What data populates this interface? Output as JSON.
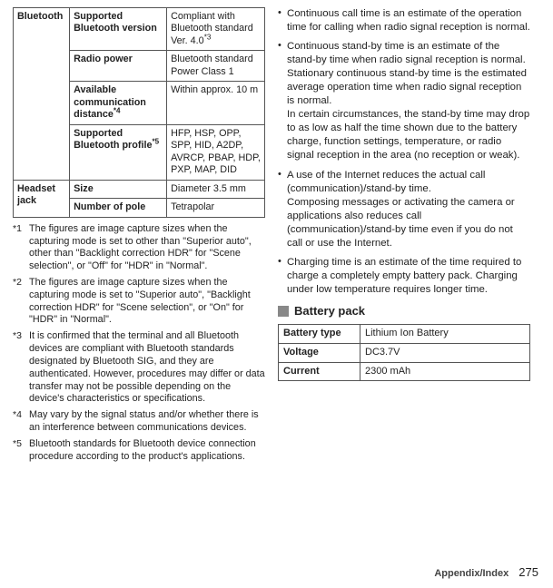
{
  "colors": {
    "text": "#222222",
    "border": "#555555",
    "section_square": "#888888",
    "bg": "#ffffff"
  },
  "spec_table": {
    "rows": [
      {
        "group": "Bluetooth",
        "label": "Supported Bluetooth version",
        "value": "Compliant with Bluetooth standard Ver. 4.0",
        "value_sup": "*3",
        "group_rowspan": 4
      },
      {
        "label": "Radio power",
        "value": "Bluetooth standard Power Class 1"
      },
      {
        "label_html": "Available communication distance",
        "label_sup": "*4",
        "value": "Within approx. 10 m"
      },
      {
        "label_html": "Supported Bluetooth profile",
        "label_sup": "*5",
        "value": "HFP, HSP, OPP, SPP, HID, A2DP, AVRCP, PBAP, HDP, PXP, MAP, DID"
      },
      {
        "group": "Headset jack",
        "label": "Size",
        "value": "Diameter 3.5 mm",
        "group_rowspan": 2
      },
      {
        "label": "Number of pole",
        "value": "Tetrapolar"
      }
    ]
  },
  "notes": [
    {
      "num": "*1",
      "text": "The figures are image capture sizes when the capturing mode is set to other than \"Superior auto\", other than \"Backlight correction HDR\" for \"Scene selection\", or \"Off\" for \"HDR\" in \"Normal\"."
    },
    {
      "num": "*2",
      "text": "The figures are image capture sizes when the capturing mode is set to \"Superior auto\", \"Backlight correction HDR\" for \"Scene selection\", or \"On\" for \"HDR\" in \"Normal\"."
    },
    {
      "num": "*3",
      "text": "It is confirmed that the terminal and all Bluetooth devices are compliant with Bluetooth standards designated by Bluetooth SIG, and they are authenticated. However, procedures may differ or data transfer may not be possible depending on the device's characteristics or specifications."
    },
    {
      "num": "*4",
      "text": "May vary by the signal status and/or whether there is an interference between communications devices."
    },
    {
      "num": "*5",
      "text": "Bluetooth standards for Bluetooth device connection procedure according to the product's applications."
    }
  ],
  "bullets": [
    "Continuous call time is an estimate of the operation time for calling when radio signal reception is normal.",
    "Continuous stand-by time is an estimate of the stand-by time when radio signal reception is normal. Stationary continuous stand-by time is the estimated average operation time when radio signal reception is normal.\nIn certain circumstances, the stand-by time may drop to as low as half the time shown due to the battery charge, function settings, temperature, or radio signal reception in the area (no reception or weak).",
    "A use of the Internet reduces the actual call (communication)/stand-by time.\nComposing messages or activating the camera or applications also reduces call (communication)/stand-by time even if you do not call or use the Internet.",
    "Charging time is an estimate of the time required to charge a completely empty battery pack. Charging under low temperature requires longer time."
  ],
  "section_heading": "Battery pack",
  "battery_table": {
    "rows": [
      {
        "label": "Battery type",
        "value": "Lithium Ion Battery"
      },
      {
        "label": "Voltage",
        "value": "DC3.7V"
      },
      {
        "label": "Current",
        "value": "2300 mAh"
      }
    ]
  },
  "footer": {
    "section": "Appendix/Index",
    "page": "275"
  }
}
